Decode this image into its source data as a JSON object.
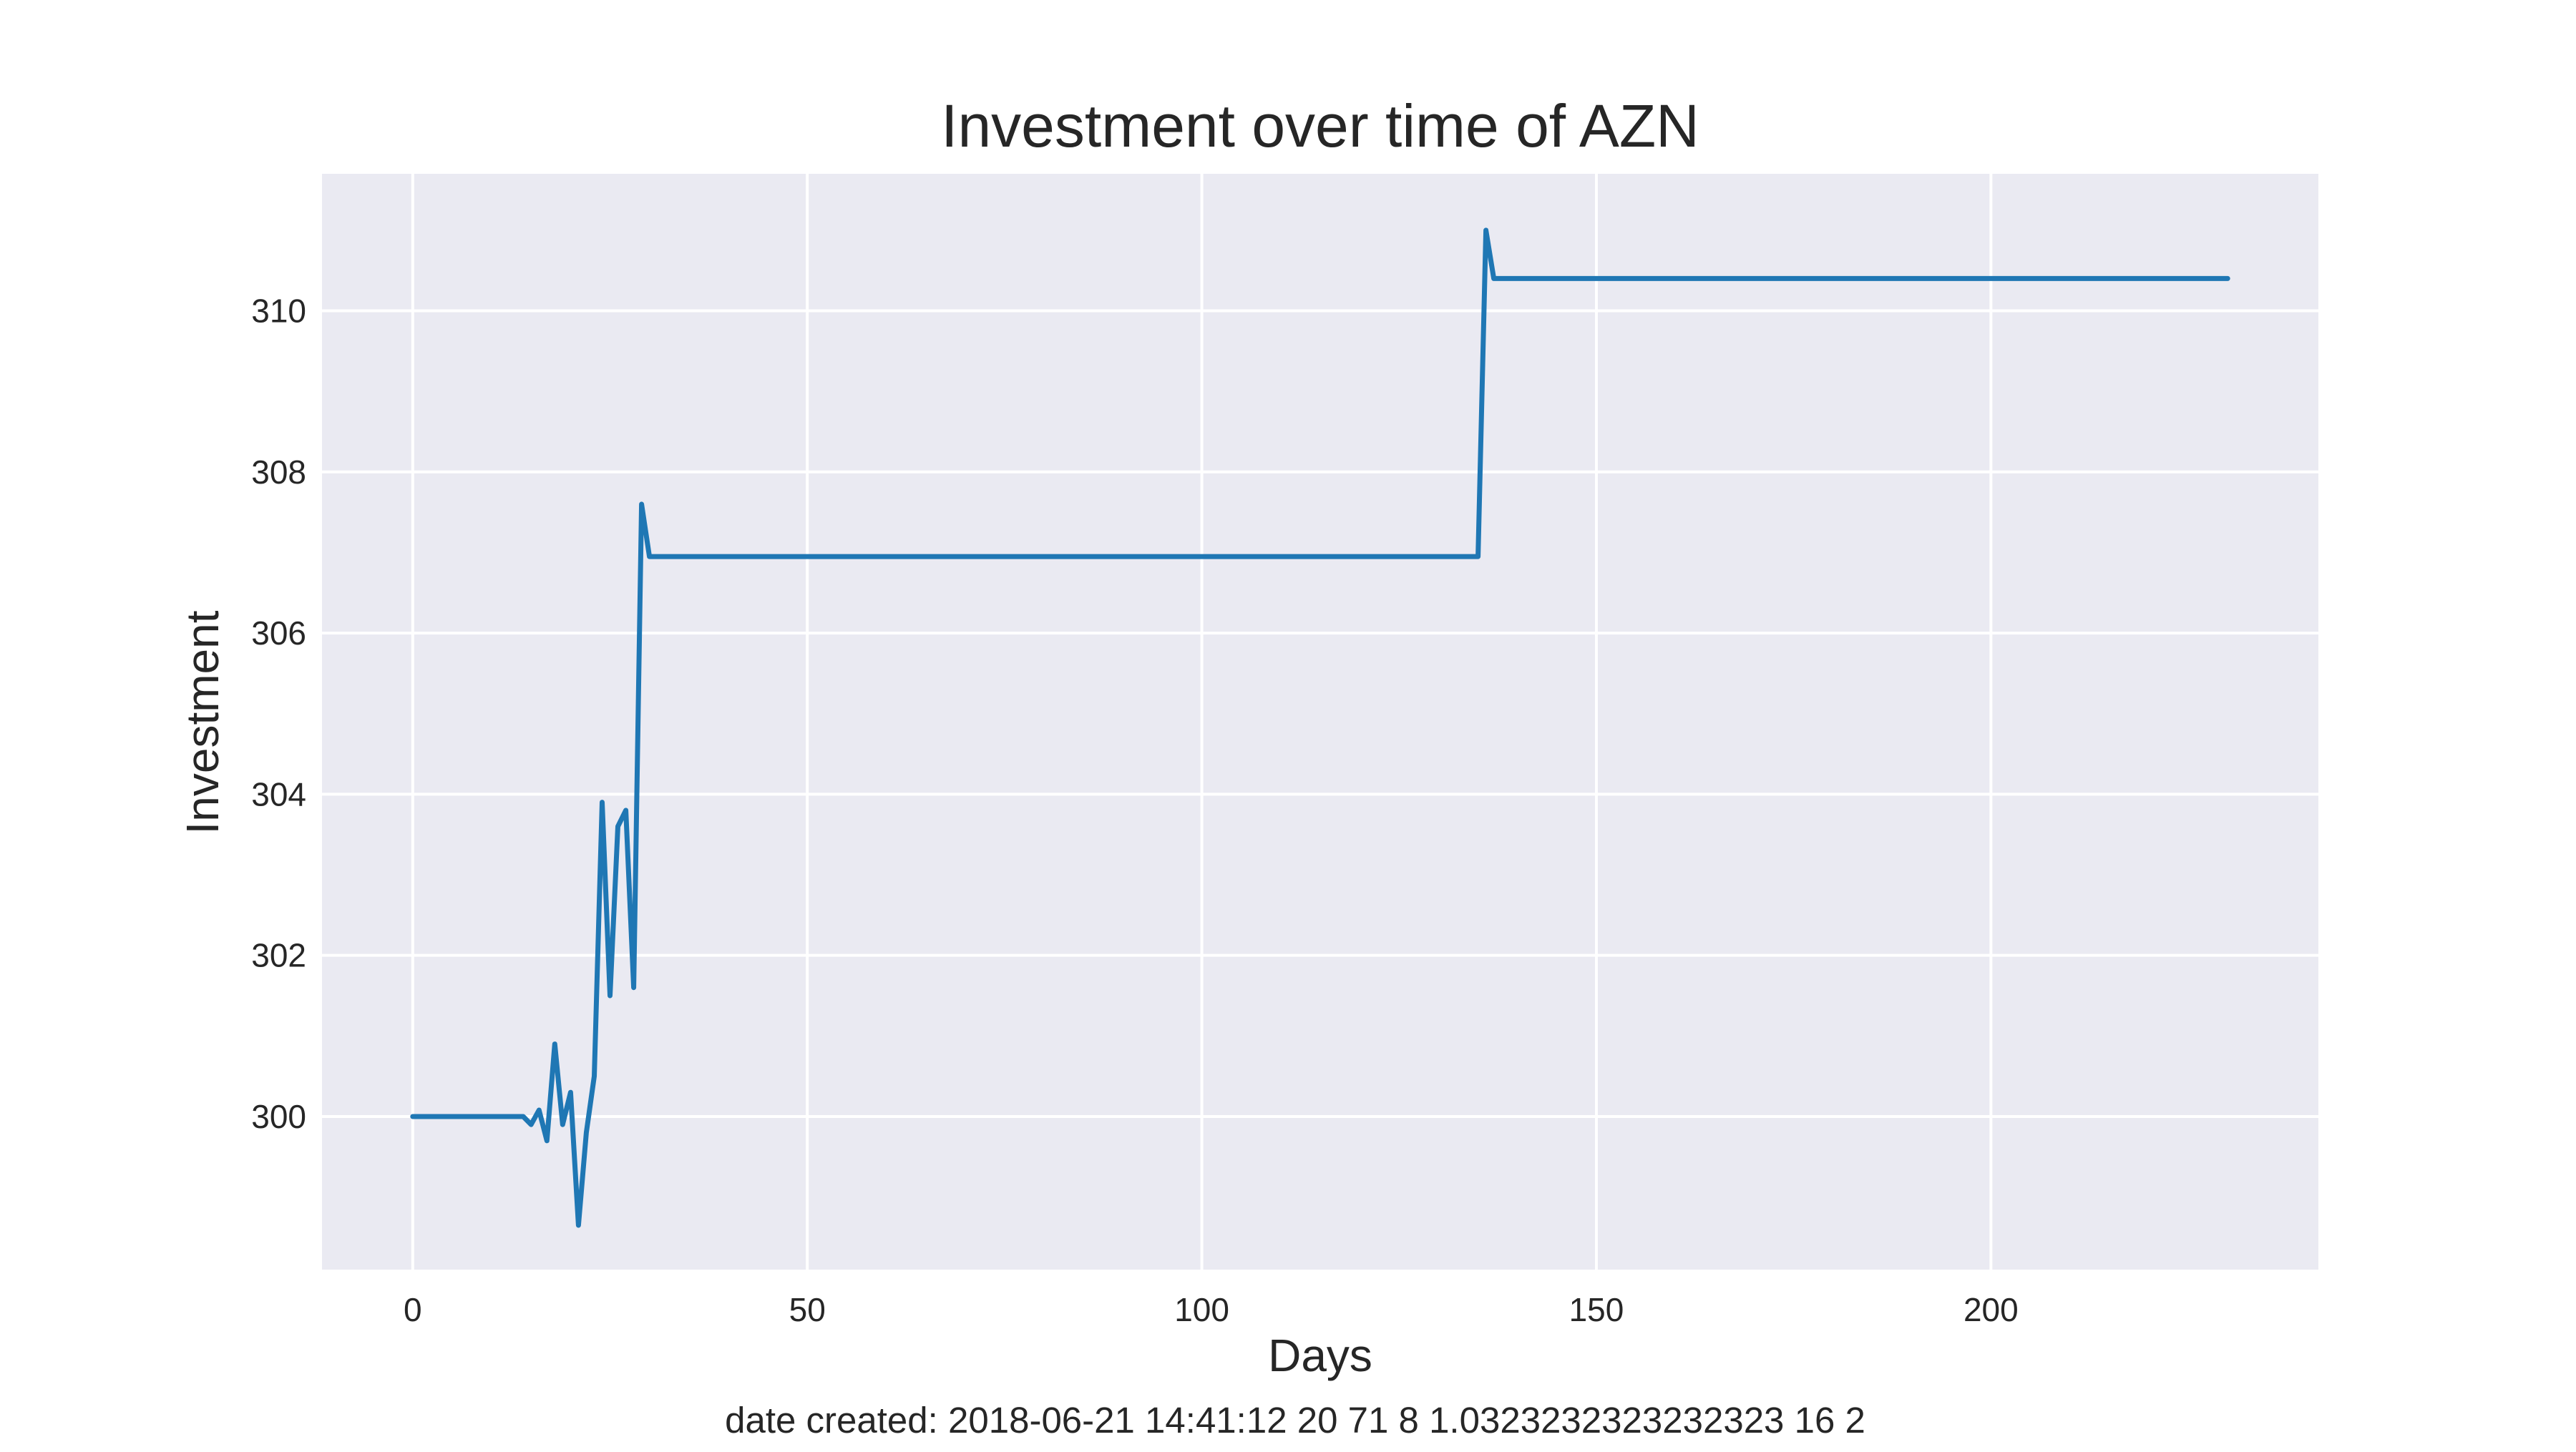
{
  "chart_data": {
    "type": "line",
    "title": "Investment over time of AZN",
    "xlabel": "Days",
    "ylabel": "Investment",
    "xlim": [
      -11.5,
      241.5
    ],
    "ylim": [
      298.1,
      311.7
    ],
    "xticks": [
      0,
      50,
      100,
      150,
      200
    ],
    "yticks": [
      300,
      302,
      304,
      306,
      308,
      310
    ],
    "grid": true,
    "legend": "none",
    "series": [
      {
        "color": "#1f77b4",
        "x": [
          0,
          14,
          15,
          16,
          17,
          18,
          19,
          20,
          21,
          22,
          23,
          24,
          25,
          26,
          27,
          28,
          29,
          30,
          135,
          136,
          137,
          230
        ],
        "y": [
          300.0,
          300.0,
          299.9,
          300.08,
          299.7,
          300.9,
          299.9,
          300.3,
          298.65,
          299.8,
          300.5,
          303.9,
          301.5,
          303.6,
          303.8,
          301.6,
          307.6,
          306.95,
          306.95,
          311.0,
          310.4,
          310.4
        ]
      }
    ]
  },
  "footer": {
    "note": "date created: 2018-06-21 14:41:12 20 71 8 1.0323232323232323 16 2"
  }
}
